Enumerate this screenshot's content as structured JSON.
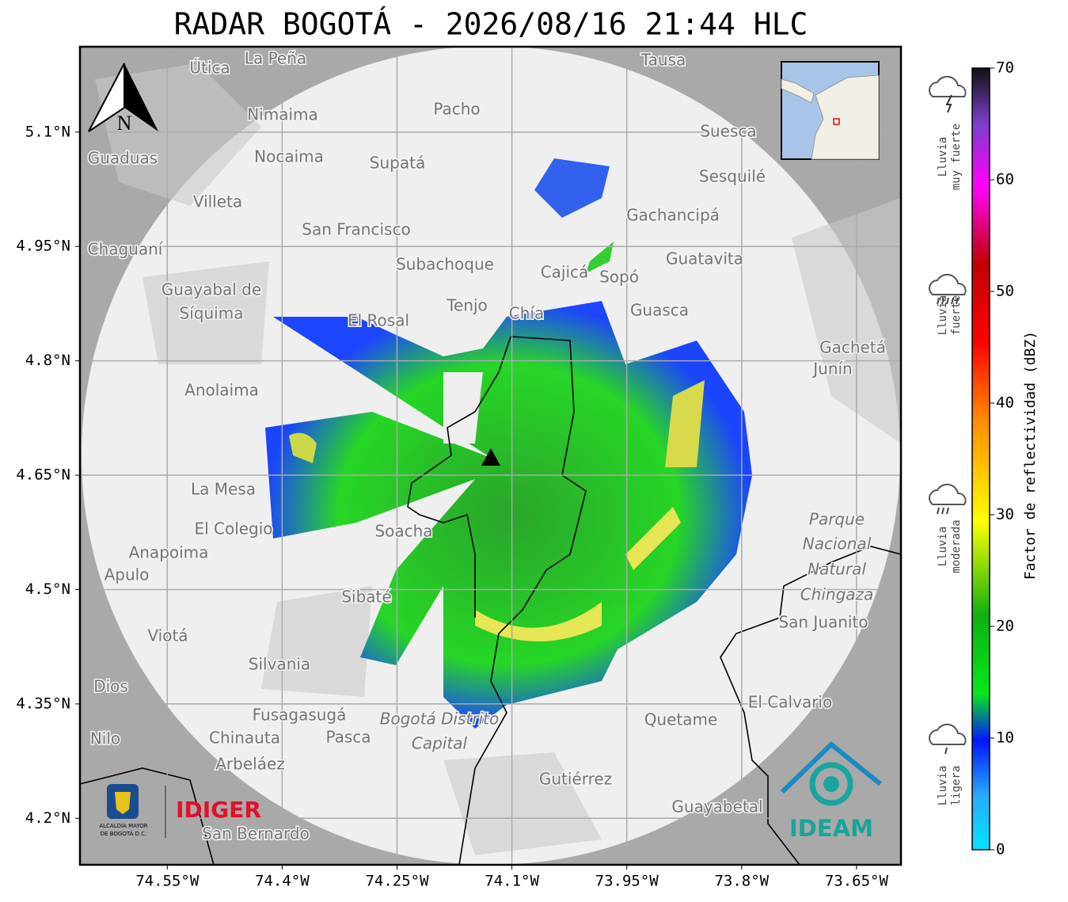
{
  "title": "RADAR BOGOTÁ - 2026/08/16 21:44 HLC",
  "map": {
    "xlim": [
      -74.664,
      -73.592
    ],
    "ylim": [
      4.139,
      5.212
    ],
    "xticks": [
      {
        "value": -74.55,
        "label": "74.55°W"
      },
      {
        "value": -74.4,
        "label": "74.4°W"
      },
      {
        "value": -74.25,
        "label": "74.25°W"
      },
      {
        "value": -74.1,
        "label": "74.1°W"
      },
      {
        "value": -73.95,
        "label": "73.95°W"
      },
      {
        "value": -73.8,
        "label": "73.8°W"
      },
      {
        "value": -73.65,
        "label": "73.65°W"
      }
    ],
    "yticks": [
      {
        "value": 5.1,
        "label": "5.1°N"
      },
      {
        "value": 4.95,
        "label": "4.95°N"
      },
      {
        "value": 4.8,
        "label": "4.8°N"
      },
      {
        "value": 4.65,
        "label": "4.65°N"
      },
      {
        "value": 4.5,
        "label": "4.5°N"
      },
      {
        "value": 4.35,
        "label": "4.35°N"
      },
      {
        "value": 4.2,
        "label": "4.2°N"
      }
    ],
    "grid": true,
    "north_label": "N",
    "places": [
      "La Peña",
      "Útica",
      "Tausa",
      "Pacho",
      "Nimaima",
      "Suesca",
      "Guaduas",
      "Nocaima",
      "Supatá",
      "Sesquilé",
      "Villeta",
      "Gachancipá",
      "San Francisco",
      "Chaguaní",
      "Guatavita",
      "Subachoque",
      "Cajicá",
      "Sopó",
      "Guayabal de",
      "Síquima",
      "Tenjo",
      "Chía",
      "Guasca",
      "El Rosal",
      "Gachetá",
      "Junín",
      "Anolaima",
      "La Mesa",
      "El Colegio",
      "Soacha",
      "Anapoima",
      "Apulo",
      "Parque",
      "Nacional",
      "Natural",
      "Chingaza",
      "Sibaté",
      "San Juanito",
      "Viotá",
      "Silvania",
      "El Calvario",
      "Dios",
      "Fusagasugá",
      "Bogotá Distrito",
      "Capital",
      "Quetame",
      "Chinauta",
      "Pasca",
      "Nilo",
      "Arbeláez",
      "Gutiérrez",
      "Guayabetal",
      "San Bernardo"
    ]
  },
  "colorbar": {
    "label": "Factor de reflectividad (dBZ)",
    "lim": [
      0,
      70
    ],
    "ticks": [
      0,
      10,
      20,
      30,
      40,
      50,
      60,
      70
    ],
    "categories": [
      [
        "Lluvia",
        "muy fuerte"
      ],
      [
        "Lluvia",
        "fuerte"
      ],
      [
        "Lluvia",
        "moderada"
      ],
      [
        "Lluvia",
        "ligera"
      ]
    ]
  },
  "logos": {
    "alcaldia": [
      "ALCALDÍA MAYOR",
      "DE BOGOTÁ D.C."
    ],
    "idiger": "IDIGER",
    "ideam": "IDEAM"
  }
}
